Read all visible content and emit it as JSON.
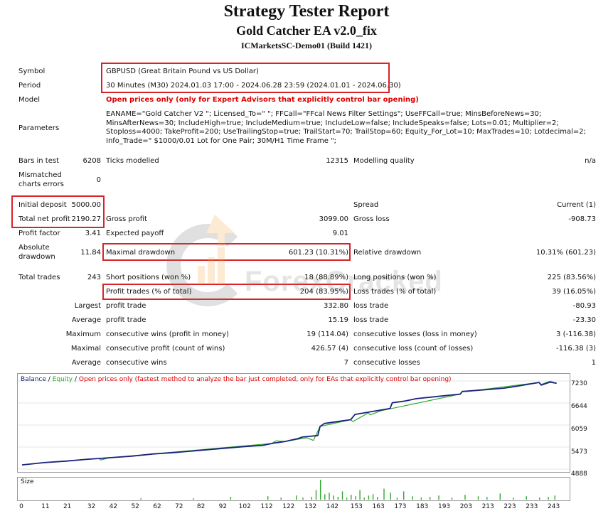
{
  "header": {
    "title": "Strategy Tester Report",
    "ea_name": "Gold Catcher EA v2.0_fix",
    "server": "ICMarketsSC-Demo01 (Build 1421)"
  },
  "info": {
    "symbol_label": "Symbol",
    "symbol_value": "GBPUSD (Great Britain Pound vs US Dollar)",
    "period_label": "Period",
    "period_value": "30 Minutes (M30) 2024.01.03 17:00 - 2024.06.28 23:59 (2024.01.01 - 2024.06.30)",
    "model_label": "Model",
    "model_value": "Open prices only (only for Expert Advisors that explicitly control bar opening)",
    "parameters_label": "Parameters",
    "parameters_value": "EANAME=\"Gold Catcher V2 \"; Licensed_To=\" \"; FFCall=\"FFcal News Filter Settings\"; UseFFCall=true; MinsBeforeNews=30; MinsAfterNews=30; IncludeHigh=true; IncludeMedium=true; IncludeLow=false; IncludeSpeaks=false; Lots=0.01; Multiplier=2; Stoploss=4000; TakeProfit=200; UseTrailingStop=true; TrailStart=70; TrailStop=60; Equity_For_Lot=10; MaxTrades=10; Lotdecimal=2; Info_Trade=\" $1000/0.01 Lot for One Pair; 30M/H1 Time Frame \";"
  },
  "stats": {
    "bars_label": "Bars in test",
    "bars_value": "6208",
    "ticks_label": "Ticks modelled",
    "ticks_value": "12315",
    "quality_label": "Modelling quality",
    "quality_value": "n/a",
    "mismatch_label_1": "Mismatched",
    "mismatch_label_2": "charts errors",
    "mismatch_value": "0",
    "deposit_label": "Initial deposit",
    "deposit_value": "5000.00",
    "spread_label": "Spread",
    "spread_value": "Current (1)",
    "net_label": "Total net profit",
    "net_value": "2190.27",
    "gross_profit_label": "Gross profit",
    "gross_profit_value": "3099.00",
    "gross_loss_label": "Gross loss",
    "gross_loss_value": "-908.73",
    "pf_label": "Profit factor",
    "pf_value": "3.41",
    "payoff_label": "Expected payoff",
    "payoff_value": "9.01",
    "abs_dd_label_1": "Absolute",
    "abs_dd_label_2": "drawdown",
    "abs_dd_value": "11.84",
    "max_dd_label": "Maximal drawdown",
    "max_dd_value": "601.23 (10.31%)",
    "rel_dd_label": "Relative drawdown",
    "rel_dd_value": "10.31% (601.23)",
    "trades_label": "Total trades",
    "trades_value": "243",
    "short_label": "Short positions (won %)",
    "short_value": "18 (88.89%)",
    "long_label": "Long positions (won %)",
    "long_value": "225 (83.56%)",
    "profit_trades_label": "Profit trades (% of total)",
    "profit_trades_value": "204 (83.95%)",
    "loss_trades_label": "Loss trades (% of total)",
    "loss_trades_value": "39 (16.05%)",
    "largest_label": "Largest",
    "largest_profit_label": "profit trade",
    "largest_profit_value": "332.80",
    "largest_loss_label": "loss trade",
    "largest_loss_value": "-80.93",
    "average_label": "Average",
    "average_profit_label": "profit trade",
    "average_profit_value": "15.19",
    "average_loss_label": "loss trade",
    "average_loss_value": "-23.30",
    "maximum_label": "Maximum",
    "max_wins_label": "consecutive wins (profit in money)",
    "max_wins_value": "19 (114.04)",
    "max_losses_label": "consecutive losses (loss in money)",
    "max_losses_value": "3 (-116.38)",
    "maximal_label": "Maximal",
    "maximal_profit_label": "consecutive profit (count of wins)",
    "maximal_profit_value": "426.57 (4)",
    "maximal_loss_label": "consecutive loss (count of losses)",
    "maximal_loss_value": "-116.38 (3)",
    "avg_cons_label": "Average",
    "avg_wins_label": "consecutive wins",
    "avg_wins_value": "7",
    "avg_losses_label": "consecutive losses",
    "avg_losses_value": "1"
  },
  "watermark": {
    "text": "ForexCracked"
  },
  "colors": {
    "balance": "#1a237e",
    "equity": "#2eaa2e",
    "highlight": "#d8232a",
    "model_text": "#dd0000"
  },
  "chart_data": {
    "type": "line",
    "legend": {
      "balance": "Balance",
      "sep1": " / ",
      "equity": "Equity",
      "sep2": " / ",
      "note": "Open prices only (fastest method to analyze the bar just completed, only for EAs that explicitly control bar opening)"
    },
    "y_ticks": [
      "7230",
      "6644",
      "6059",
      "5473",
      "4888"
    ],
    "ylim": [
      4888,
      7230
    ],
    "xlim": [
      0,
      248
    ],
    "x_ticks": [
      "0",
      "11",
      "21",
      "32",
      "42",
      "52",
      "62",
      "72",
      "82",
      "92",
      "102",
      "112",
      "122",
      "132",
      "142",
      "153",
      "163",
      "173",
      "183",
      "193",
      "203",
      "213",
      "223",
      "233",
      "243"
    ],
    "size_label": "Size",
    "series": [
      {
        "name": "Balance",
        "x": [
          0,
          5,
          10,
          20,
          30,
          35,
          40,
          50,
          60,
          70,
          80,
          90,
          100,
          110,
          115,
          120,
          126,
          128,
          135,
          136,
          138,
          145,
          150,
          152,
          160,
          168,
          169,
          175,
          180,
          190,
          200,
          201,
          210,
          220,
          225,
          230,
          236,
          237,
          241,
          244
        ],
        "y": [
          5000,
          5030,
          5060,
          5100,
          5150,
          5170,
          5190,
          5230,
          5290,
          5330,
          5380,
          5430,
          5480,
          5520,
          5580,
          5620,
          5700,
          5740,
          5780,
          6020,
          6100,
          6160,
          6200,
          6340,
          6420,
          6500,
          6650,
          6700,
          6760,
          6820,
          6880,
          6950,
          6990,
          7040,
          7080,
          7130,
          7190,
          7120,
          7200,
          7170
        ]
      },
      {
        "name": "Equity",
        "x": [
          0,
          9,
          10,
          35,
          36,
          40,
          114,
          116,
          120,
          130,
          133,
          136,
          150,
          151,
          158,
          159,
          164,
          200,
          201,
          203,
          236,
          237,
          241,
          244
        ],
        "y": [
          5000,
          5050,
          5060,
          5170,
          5130,
          5190,
          5570,
          5640,
          5620,
          5720,
          5650,
          6020,
          6200,
          6150,
          6380,
          6330,
          6440,
          6880,
          6960,
          6950,
          7190,
          7140,
          7220,
          7170
        ]
      }
    ],
    "size_bars": {
      "x": [
        54,
        78,
        95,
        112,
        118,
        125,
        128,
        132,
        134,
        136,
        138,
        140,
        142,
        144,
        146,
        148,
        150,
        152,
        154,
        156,
        158,
        160,
        162,
        165,
        168,
        171,
        174,
        178,
        182,
        186,
        190,
        196,
        202,
        208,
        212,
        218,
        224,
        230,
        236,
        240,
        243
      ],
      "y": [
        2,
        2,
        4,
        5,
        3,
        6,
        3,
        4,
        14,
        29,
        8,
        10,
        6,
        4,
        12,
        3,
        7,
        5,
        14,
        3,
        6,
        8,
        4,
        16,
        10,
        3,
        12,
        5,
        3,
        4,
        6,
        3,
        7,
        5,
        4,
        9,
        3,
        5,
        3,
        4,
        6
      ]
    }
  }
}
